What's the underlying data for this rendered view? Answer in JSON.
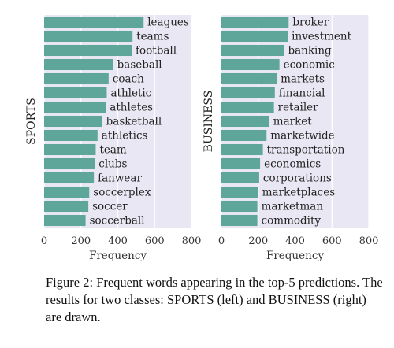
{
  "chart_data": [
    {
      "type": "bar",
      "orientation": "horizontal",
      "ylabel": "SPORTS",
      "xlabel": "Frequency",
      "xlim": [
        0,
        800
      ],
      "xticks": [
        0,
        200,
        400,
        600,
        800
      ],
      "grid": true,
      "categories": [
        "leagues",
        "teams",
        "football",
        "baseball",
        "coach",
        "athletic",
        "athletes",
        "basketball",
        "athletics",
        "team",
        "clubs",
        "fanwear",
        "soccerplex",
        "soccer",
        "soccerball"
      ],
      "values": [
        540,
        480,
        475,
        375,
        350,
        340,
        335,
        315,
        290,
        280,
        275,
        270,
        245,
        240,
        225
      ]
    },
    {
      "type": "bar",
      "orientation": "horizontal",
      "ylabel": "BUSINESS",
      "xlabel": "Frequency",
      "xlim": [
        0,
        800
      ],
      "xticks": [
        0,
        200,
        400,
        600,
        800
      ],
      "grid": true,
      "categories": [
        "broker",
        "investment",
        "banking",
        "economic",
        "markets",
        "financial",
        "retailer",
        "market",
        "marketwide",
        "transportation",
        "economics",
        "corporations",
        "marketplaces",
        "marketman",
        "commodity"
      ],
      "values": [
        365,
        360,
        340,
        315,
        300,
        290,
        285,
        260,
        245,
        225,
        210,
        205,
        200,
        195,
        195
      ]
    }
  ],
  "colors": {
    "bar": "#5da699",
    "panel": "#e9e7f3",
    "grid": "#ffffff"
  },
  "caption": "Figure 2: Frequent words appearing in the top-5 predictions. The results for two classes: SPORTS (left) and BUSINESS (right) are drawn."
}
